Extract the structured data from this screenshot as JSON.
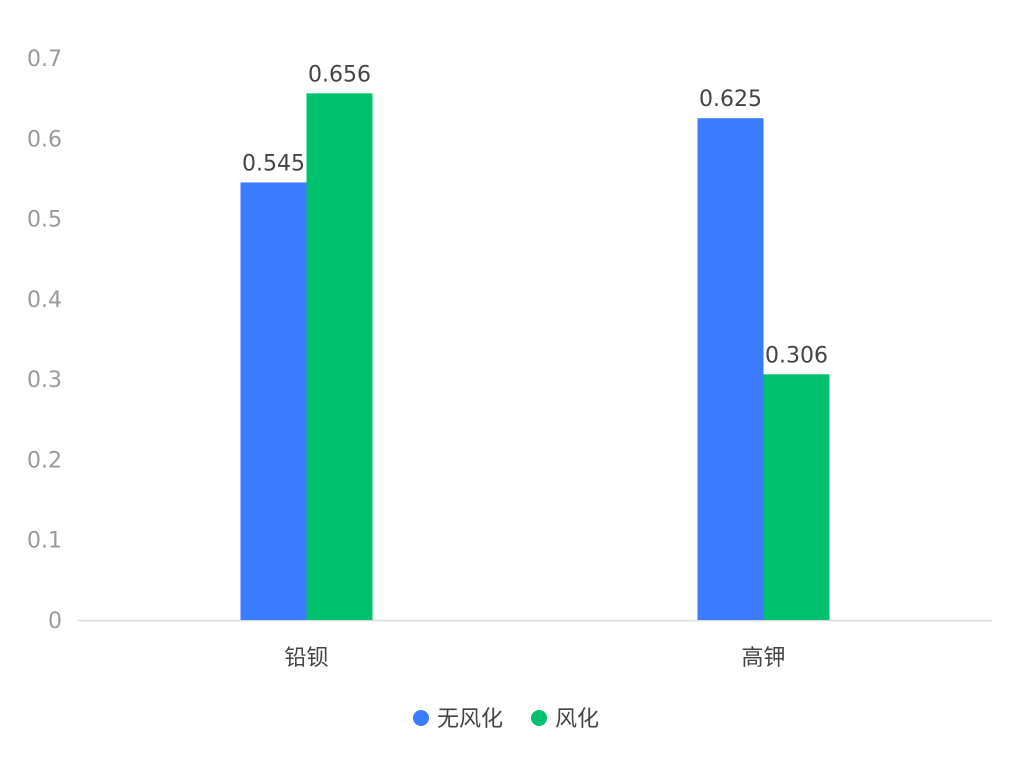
{
  "chart_data": {
    "type": "bar",
    "title": "",
    "xlabel": "",
    "ylabel": "",
    "categories": [
      "铅钡",
      "高钾"
    ],
    "series": [
      {
        "name": "无风化",
        "color": "#3a7bff",
        "values": [
          0.545,
          0.625
        ]
      },
      {
        "name": "风化",
        "color": "#00c16e",
        "values": [
          0.656,
          0.306
        ]
      }
    ],
    "ylim": [
      0,
      0.7
    ],
    "yticks": [
      "0",
      "0.1",
      "0.2",
      "0.3",
      "0.4",
      "0.5",
      "0.6",
      "0.7"
    ],
    "data_labels": [
      [
        "0.545",
        "0.625"
      ],
      [
        "0.656",
        "0.306"
      ]
    ],
    "grid": false,
    "legend_position": "bottom-center"
  }
}
